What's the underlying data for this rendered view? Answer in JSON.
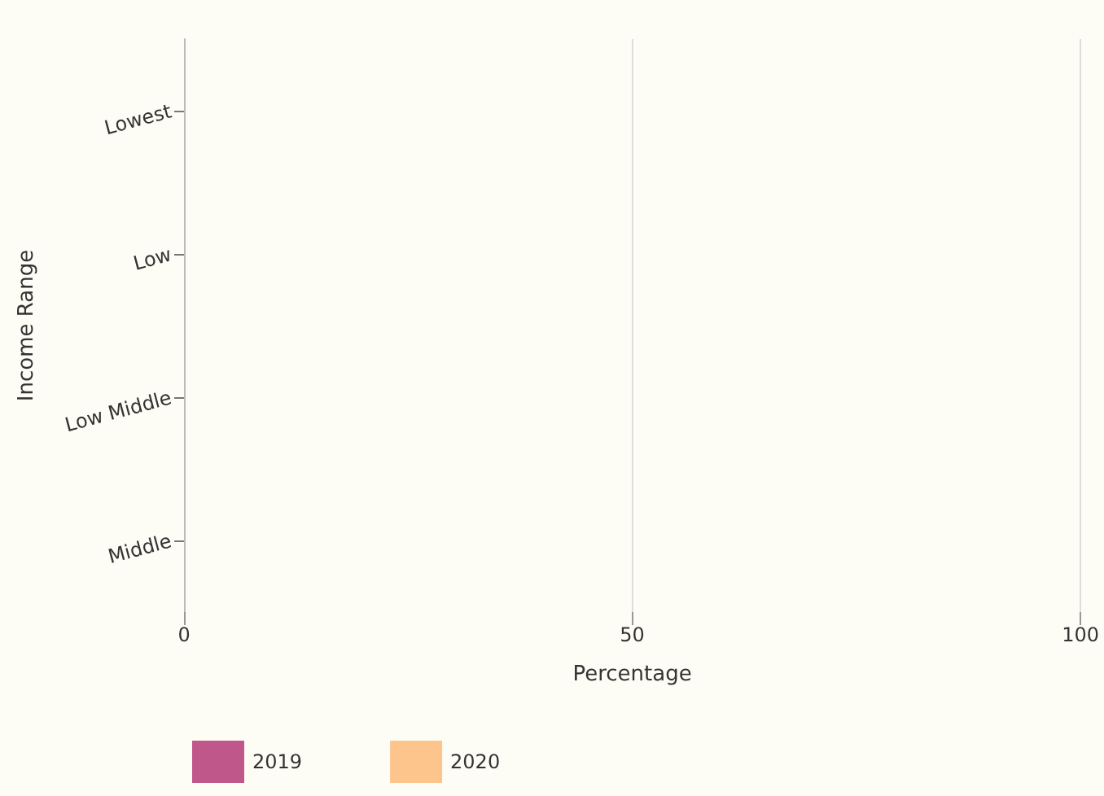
{
  "chart_data": {
    "type": "bar",
    "orientation": "horizontal",
    "xlabel": "Percentage",
    "ylabel": "Income Range",
    "categories": [
      "Lowest",
      "Low",
      "Low Middle",
      "Middle"
    ],
    "series": [
      {
        "name": "2019",
        "color": "#c0578a",
        "values": [
          null,
          null,
          null,
          null
        ]
      },
      {
        "name": "2020",
        "color": "#fdc58c",
        "values": [
          null,
          null,
          null,
          null
        ]
      }
    ],
    "xlim": [
      0,
      100
    ],
    "xticks": [
      0,
      50,
      100
    ],
    "grid": "x",
    "legend": "bottom left"
  }
}
